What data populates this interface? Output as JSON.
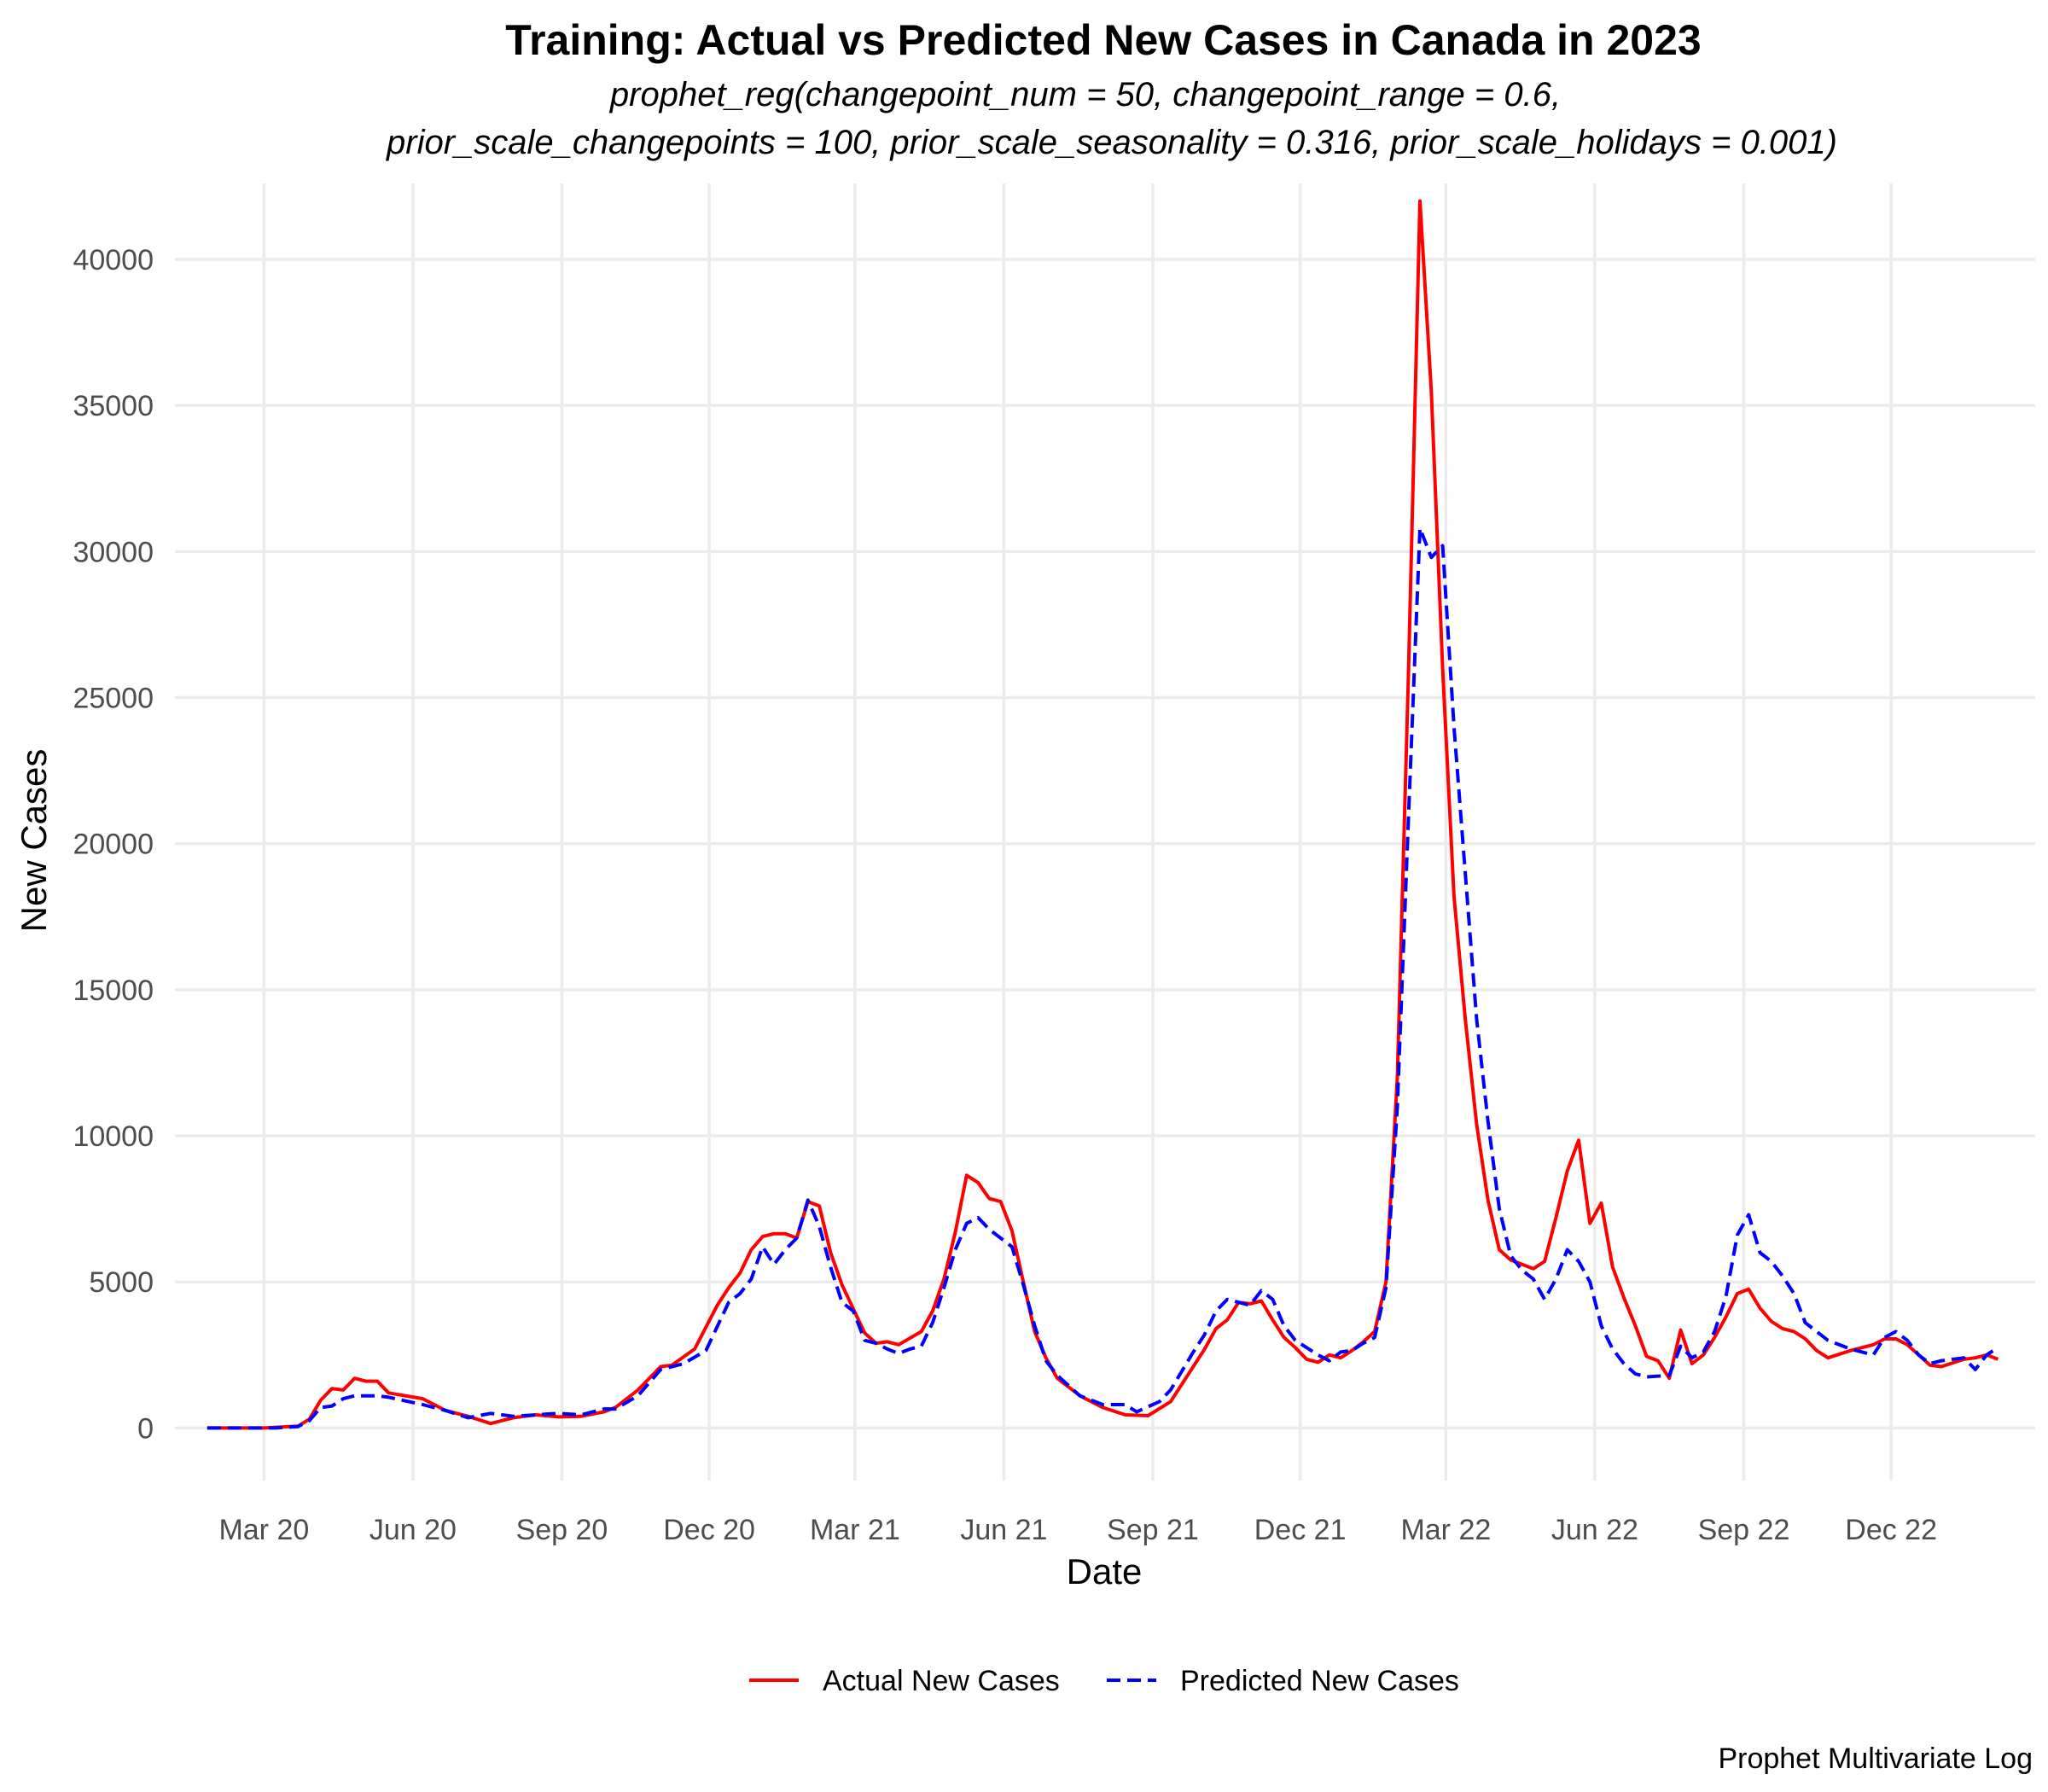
{
  "chart_data": {
    "type": "line",
    "title": "Training: Actual vs Predicted New Cases in Canada in 2023",
    "subtitle_lines": [
      "prophet_reg(changepoint_num = 50, changepoint_range = 0.6,",
      "prior_scale_changepoints = 100, prior_scale_seasonality = 0.316, prior_scale_holidays = 0.001)"
    ],
    "xlabel": "Date",
    "ylabel": "New Cases",
    "caption": "Prophet Multivariate Log",
    "xlim": [
      "2020-01-06",
      "2023-02-28"
    ],
    "ylim": [
      -1800,
      42600
    ],
    "x_ticks": [
      {
        "date": "2020-03-01",
        "label": "Mar 20"
      },
      {
        "date": "2020-06-01",
        "label": "Jun 20"
      },
      {
        "date": "2020-09-01",
        "label": "Sep 20"
      },
      {
        "date": "2020-12-01",
        "label": "Dec 20"
      },
      {
        "date": "2021-03-01",
        "label": "Mar 21"
      },
      {
        "date": "2021-06-01",
        "label": "Jun 21"
      },
      {
        "date": "2021-09-01",
        "label": "Sep 21"
      },
      {
        "date": "2021-12-01",
        "label": "Dec 21"
      },
      {
        "date": "2022-03-01",
        "label": "Mar 22"
      },
      {
        "date": "2022-06-01",
        "label": "Jun 22"
      },
      {
        "date": "2022-09-01",
        "label": "Sep 22"
      },
      {
        "date": "2022-12-01",
        "label": "Dec 22"
      }
    ],
    "y_ticks": [
      0,
      5000,
      10000,
      15000,
      20000,
      25000,
      30000,
      35000,
      40000
    ],
    "grid": true,
    "legend_position": "bottom",
    "series": [
      {
        "name": "Actual New Cases",
        "color": "#ff0000",
        "dash": "solid",
        "points": [
          [
            "2020-01-26",
            0
          ],
          [
            "2020-03-01",
            0
          ],
          [
            "2020-03-22",
            60
          ],
          [
            "2020-03-29",
            300
          ],
          [
            "2020-04-05",
            950
          ],
          [
            "2020-04-12",
            1350
          ],
          [
            "2020-04-19",
            1300
          ],
          [
            "2020-04-26",
            1700
          ],
          [
            "2020-05-03",
            1600
          ],
          [
            "2020-05-10",
            1600
          ],
          [
            "2020-05-17",
            1200
          ],
          [
            "2020-06-07",
            1000
          ],
          [
            "2020-06-21",
            600
          ],
          [
            "2020-07-05",
            400
          ],
          [
            "2020-07-19",
            150
          ],
          [
            "2020-08-02",
            350
          ],
          [
            "2020-08-16",
            450
          ],
          [
            "2020-08-30",
            380
          ],
          [
            "2020-09-13",
            400
          ],
          [
            "2020-09-27",
            550
          ],
          [
            "2020-10-04",
            700
          ],
          [
            "2020-10-18",
            1300
          ],
          [
            "2020-11-01",
            2100
          ],
          [
            "2020-11-08",
            2150
          ],
          [
            "2020-11-22",
            2700
          ],
          [
            "2020-12-06",
            4200
          ],
          [
            "2020-12-13",
            4800
          ],
          [
            "2020-12-20",
            5300
          ],
          [
            "2020-12-27",
            6100
          ],
          [
            "2021-01-03",
            6550
          ],
          [
            "2021-01-10",
            6650
          ],
          [
            "2021-01-17",
            6650
          ],
          [
            "2021-01-24",
            6500
          ],
          [
            "2021-01-31",
            7750
          ],
          [
            "2021-02-07",
            7600
          ],
          [
            "2021-02-14",
            6000
          ],
          [
            "2021-02-21",
            4900
          ],
          [
            "2021-03-07",
            3250
          ],
          [
            "2021-03-14",
            2900
          ],
          [
            "2021-03-21",
            2950
          ],
          [
            "2021-03-28",
            2850
          ],
          [
            "2021-04-11",
            3300
          ],
          [
            "2021-04-18",
            4000
          ],
          [
            "2021-04-25",
            5100
          ],
          [
            "2021-05-02",
            6700
          ],
          [
            "2021-05-09",
            8650
          ],
          [
            "2021-05-16",
            8400
          ],
          [
            "2021-05-23",
            7850
          ],
          [
            "2021-05-30",
            7750
          ],
          [
            "2021-06-06",
            6750
          ],
          [
            "2021-06-13",
            5000
          ],
          [
            "2021-06-20",
            3300
          ],
          [
            "2021-06-27",
            2400
          ],
          [
            "2021-07-04",
            1700
          ],
          [
            "2021-07-18",
            1100
          ],
          [
            "2021-08-01",
            700
          ],
          [
            "2021-08-15",
            450
          ],
          [
            "2021-08-29",
            420
          ],
          [
            "2021-09-12",
            900
          ],
          [
            "2021-09-19",
            1500
          ],
          [
            "2021-10-03",
            2700
          ],
          [
            "2021-10-10",
            3400
          ],
          [
            "2021-10-17",
            3700
          ],
          [
            "2021-10-24",
            4300
          ],
          [
            "2021-10-31",
            4250
          ],
          [
            "2021-11-07",
            4350
          ],
          [
            "2021-11-14",
            3700
          ],
          [
            "2021-11-21",
            3100
          ],
          [
            "2021-11-28",
            2750
          ],
          [
            "2021-12-05",
            2350
          ],
          [
            "2021-12-12",
            2250
          ],
          [
            "2021-12-19",
            2500
          ],
          [
            "2021-12-26",
            2400
          ],
          [
            "2022-01-02",
            2650
          ],
          [
            "2022-01-09",
            2950
          ],
          [
            "2022-01-16",
            3300
          ],
          [
            "2022-01-23",
            5000
          ],
          [
            "2022-01-30",
            12000
          ],
          [
            "2022-02-06",
            26000
          ],
          [
            "2022-02-13",
            42000
          ],
          [
            "2022-02-20",
            35500
          ],
          [
            "2022-02-27",
            26000
          ],
          [
            "2022-03-06",
            18200
          ],
          [
            "2022-03-13",
            14000
          ],
          [
            "2022-03-20",
            10400
          ],
          [
            "2022-03-27",
            7800
          ],
          [
            "2022-04-03",
            6100
          ],
          [
            "2022-04-10",
            5750
          ],
          [
            "2022-04-24",
            5450
          ],
          [
            "2022-05-01",
            5700
          ],
          [
            "2022-05-08",
            7200
          ],
          [
            "2022-05-15",
            8800
          ],
          [
            "2022-05-22",
            9850
          ],
          [
            "2022-05-29",
            7000
          ],
          [
            "2022-06-05",
            7700
          ],
          [
            "2022-06-12",
            5500
          ],
          [
            "2022-06-19",
            4450
          ],
          [
            "2022-06-26",
            3500
          ],
          [
            "2022-07-03",
            2450
          ],
          [
            "2022-07-10",
            2300
          ],
          [
            "2022-07-17",
            1700
          ],
          [
            "2022-07-24",
            3350
          ],
          [
            "2022-07-31",
            2200
          ],
          [
            "2022-08-07",
            2500
          ],
          [
            "2022-08-14",
            3100
          ],
          [
            "2022-08-21",
            3800
          ],
          [
            "2022-08-28",
            4600
          ],
          [
            "2022-09-04",
            4750
          ],
          [
            "2022-09-11",
            4100
          ],
          [
            "2022-09-18",
            3650
          ],
          [
            "2022-09-25",
            3400
          ],
          [
            "2022-10-02",
            3300
          ],
          [
            "2022-10-09",
            3050
          ],
          [
            "2022-10-16",
            2650
          ],
          [
            "2022-10-23",
            2400
          ],
          [
            "2022-11-06",
            2650
          ],
          [
            "2022-11-20",
            2850
          ],
          [
            "2022-11-27",
            3050
          ],
          [
            "2022-12-04",
            3050
          ],
          [
            "2022-12-11",
            2850
          ],
          [
            "2022-12-18",
            2500
          ],
          [
            "2022-12-25",
            2150
          ],
          [
            "2023-01-01",
            2100
          ],
          [
            "2023-01-15",
            2350
          ],
          [
            "2023-01-22",
            2400
          ],
          [
            "2023-01-29",
            2500
          ],
          [
            "2023-02-05",
            2350
          ]
        ]
      },
      {
        "name": "Predicted New Cases",
        "color": "#0000ff",
        "dash": "dashed",
        "points": [
          [
            "2020-01-26",
            0
          ],
          [
            "2020-03-08",
            0
          ],
          [
            "2020-03-22",
            50
          ],
          [
            "2020-03-29",
            250
          ],
          [
            "2020-04-05",
            700
          ],
          [
            "2020-04-12",
            750
          ],
          [
            "2020-04-19",
            1000
          ],
          [
            "2020-04-26",
            1100
          ],
          [
            "2020-05-10",
            1100
          ],
          [
            "2020-05-17",
            1050
          ],
          [
            "2020-06-07",
            800
          ],
          [
            "2020-06-21",
            600
          ],
          [
            "2020-07-05",
            350
          ],
          [
            "2020-07-19",
            500
          ],
          [
            "2020-08-02",
            400
          ],
          [
            "2020-08-16",
            450
          ],
          [
            "2020-08-30",
            500
          ],
          [
            "2020-09-13",
            450
          ],
          [
            "2020-09-27",
            650
          ],
          [
            "2020-10-04",
            650
          ],
          [
            "2020-10-18",
            1100
          ],
          [
            "2020-11-01",
            2000
          ],
          [
            "2020-11-15",
            2200
          ],
          [
            "2020-11-29",
            2650
          ],
          [
            "2020-12-13",
            4300
          ],
          [
            "2020-12-20",
            4600
          ],
          [
            "2020-12-27",
            5100
          ],
          [
            "2021-01-03",
            6200
          ],
          [
            "2021-01-10",
            5600
          ],
          [
            "2021-01-17",
            6100
          ],
          [
            "2021-01-24",
            6500
          ],
          [
            "2021-01-31",
            7800
          ],
          [
            "2021-02-07",
            6900
          ],
          [
            "2021-02-14",
            5500
          ],
          [
            "2021-02-21",
            4300
          ],
          [
            "2021-02-28",
            4000
          ],
          [
            "2021-03-07",
            3000
          ],
          [
            "2021-03-14",
            2900
          ],
          [
            "2021-03-21",
            2700
          ],
          [
            "2021-03-28",
            2550
          ],
          [
            "2021-04-04",
            2700
          ],
          [
            "2021-04-11",
            2800
          ],
          [
            "2021-04-18",
            3600
          ],
          [
            "2021-04-25",
            4800
          ],
          [
            "2021-05-02",
            6100
          ],
          [
            "2021-05-09",
            7000
          ],
          [
            "2021-05-16",
            7200
          ],
          [
            "2021-05-23",
            6800
          ],
          [
            "2021-06-06",
            6200
          ],
          [
            "2021-06-13",
            4900
          ],
          [
            "2021-06-20",
            3500
          ],
          [
            "2021-06-27",
            2300
          ],
          [
            "2021-07-04",
            1800
          ],
          [
            "2021-07-18",
            1100
          ],
          [
            "2021-08-01",
            800
          ],
          [
            "2021-08-15",
            800
          ],
          [
            "2021-08-22",
            550
          ],
          [
            "2021-09-05",
            900
          ],
          [
            "2021-09-12",
            1300
          ],
          [
            "2021-09-26",
            2600
          ],
          [
            "2021-10-03",
            3200
          ],
          [
            "2021-10-10",
            4000
          ],
          [
            "2021-10-17",
            4400
          ],
          [
            "2021-10-31",
            4200
          ],
          [
            "2021-11-07",
            4700
          ],
          [
            "2021-11-14",
            4400
          ],
          [
            "2021-11-21",
            3500
          ],
          [
            "2021-11-28",
            3000
          ],
          [
            "2021-12-12",
            2500
          ],
          [
            "2021-12-19",
            2300
          ],
          [
            "2021-12-26",
            2600
          ],
          [
            "2022-01-02",
            2650
          ],
          [
            "2022-01-09",
            2900
          ],
          [
            "2022-01-16",
            3100
          ],
          [
            "2022-01-23",
            4800
          ],
          [
            "2022-01-30",
            11000
          ],
          [
            "2022-02-06",
            21000
          ],
          [
            "2022-02-13",
            30800
          ],
          [
            "2022-02-20",
            29800
          ],
          [
            "2022-02-27",
            30200
          ],
          [
            "2022-03-06",
            24000
          ],
          [
            "2022-03-13",
            19000
          ],
          [
            "2022-03-20",
            14000
          ],
          [
            "2022-03-27",
            10500
          ],
          [
            "2022-04-03",
            7500
          ],
          [
            "2022-04-10",
            5900
          ],
          [
            "2022-04-17",
            5400
          ],
          [
            "2022-04-24",
            5100
          ],
          [
            "2022-05-01",
            4400
          ],
          [
            "2022-05-08",
            5100
          ],
          [
            "2022-05-15",
            6100
          ],
          [
            "2022-05-22",
            5700
          ],
          [
            "2022-05-29",
            5000
          ],
          [
            "2022-06-05",
            3500
          ],
          [
            "2022-06-12",
            2700
          ],
          [
            "2022-06-19",
            2200
          ],
          [
            "2022-06-26",
            1850
          ],
          [
            "2022-07-03",
            1750
          ],
          [
            "2022-07-17",
            1800
          ],
          [
            "2022-07-24",
            2800
          ],
          [
            "2022-07-31",
            2400
          ],
          [
            "2022-08-07",
            2600
          ],
          [
            "2022-08-14",
            3300
          ],
          [
            "2022-08-21",
            4500
          ],
          [
            "2022-08-28",
            6600
          ],
          [
            "2022-09-04",
            7300
          ],
          [
            "2022-09-11",
            6000
          ],
          [
            "2022-09-18",
            5700
          ],
          [
            "2022-09-25",
            5200
          ],
          [
            "2022-10-02",
            4600
          ],
          [
            "2022-10-09",
            3600
          ],
          [
            "2022-10-16",
            3300
          ],
          [
            "2022-10-23",
            3000
          ],
          [
            "2022-11-06",
            2700
          ],
          [
            "2022-11-20",
            2500
          ],
          [
            "2022-11-27",
            3100
          ],
          [
            "2022-12-04",
            3300
          ],
          [
            "2022-12-11",
            3000
          ],
          [
            "2022-12-18",
            2500
          ],
          [
            "2022-12-25",
            2200
          ],
          [
            "2023-01-01",
            2300
          ],
          [
            "2023-01-15",
            2400
          ],
          [
            "2023-01-22",
            2000
          ],
          [
            "2023-01-29",
            2500
          ],
          [
            "2023-02-05",
            2750
          ]
        ]
      }
    ]
  }
}
